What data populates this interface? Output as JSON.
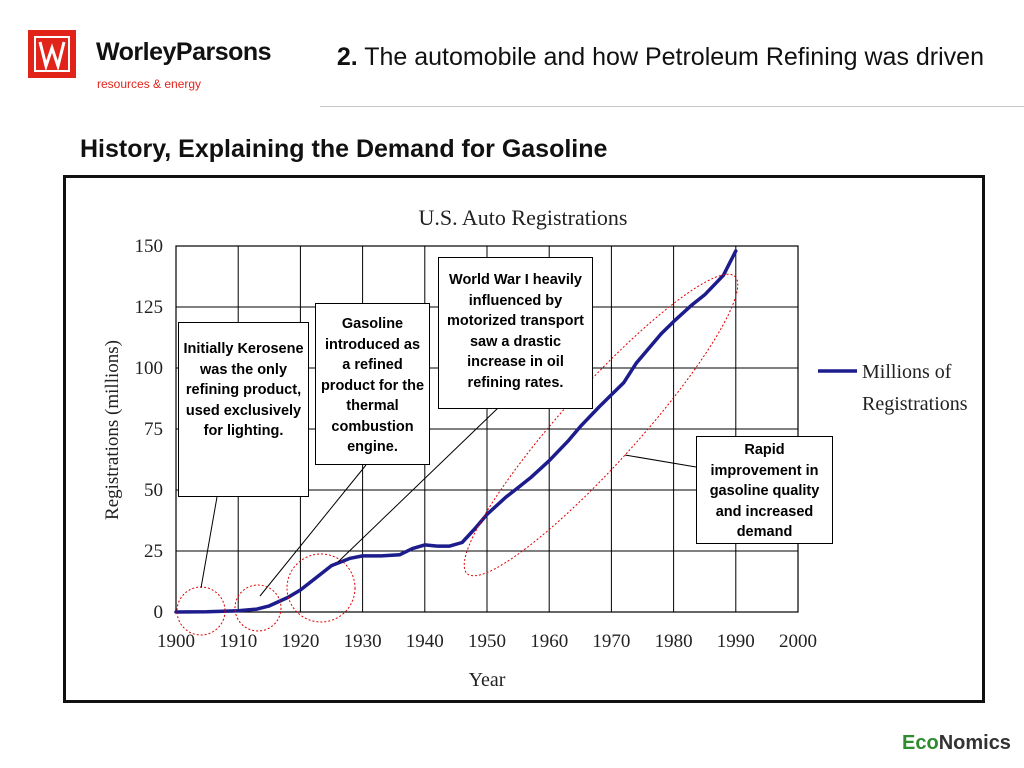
{
  "header": {
    "brand_name": "WorleyParsons",
    "brand_tagline": "resources & energy",
    "slide_number": "2.",
    "slide_title": "The automobile and how Petroleum Refining was driven"
  },
  "section_heading": "History, Explaining the Demand for Gasoline",
  "callouts": {
    "kerosene": "Initially Kerosene was the only refining product, used exclusively for lighting.",
    "gasoline": "Gasoline introduced as a refined product for the thermal combustion engine.",
    "wwi": "World War I heavily influenced by motorized transport saw a drastic increase in oil refining rates.",
    "rapid": "Rapid improvement in gasoline quality and increased demand"
  },
  "footer": {
    "eco": "Eco",
    "nomics": "Nomics"
  },
  "colors": {
    "line": "#1c1c8c",
    "brand_red": "#e2231a",
    "annotation_red": "#e00000"
  },
  "chart_data": {
    "type": "line",
    "title": "U.S. Auto Registrations",
    "xlabel": "Year",
    "ylabel": "Registrations (millions)",
    "xlim": [
      1900,
      2000
    ],
    "ylim": [
      0,
      150
    ],
    "x_ticks": [
      1900,
      1910,
      1920,
      1930,
      1940,
      1950,
      1960,
      1970,
      1980,
      1990,
      2000
    ],
    "y_ticks": [
      0,
      25,
      50,
      75,
      100,
      125,
      150
    ],
    "grid": true,
    "legend_position": "right",
    "series": [
      {
        "name": "Millions of Registrations",
        "x": [
          1900,
          1905,
          1910,
          1913,
          1915,
          1918,
          1920,
          1923,
          1925,
          1928,
          1930,
          1933,
          1936,
          1938,
          1940,
          1942,
          1944,
          1946,
          1948,
          1950,
          1953,
          1955,
          1957,
          1960,
          1963,
          1965,
          1968,
          1970,
          1972,
          1974,
          1976,
          1978,
          1980,
          1983,
          1985,
          1988,
          1990
        ],
        "y": [
          0,
          0.1,
          0.5,
          1.2,
          2.5,
          6,
          9,
          15,
          19,
          22,
          23,
          23,
          23.5,
          26,
          27.5,
          27,
          27,
          28.5,
          34,
          40,
          47,
          51,
          55,
          62,
          70,
          76,
          84,
          89,
          94,
          102,
          108,
          114,
          119,
          126,
          130,
          138,
          148
        ]
      }
    ]
  }
}
